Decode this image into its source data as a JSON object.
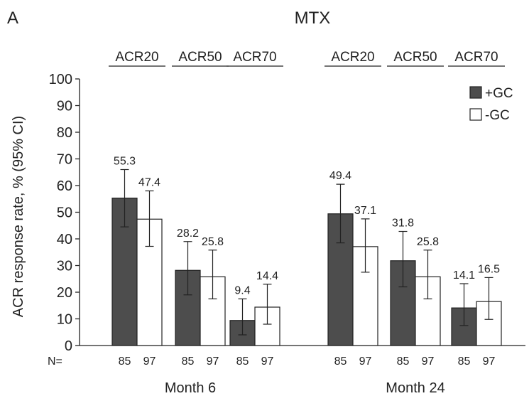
{
  "panel_letter": "A",
  "chart_data": {
    "type": "bar",
    "title": "MTX",
    "xlabel": "",
    "ylabel": "ACR response rate, % (95% CI)",
    "ylim": [
      0,
      100
    ],
    "yticks": [
      0,
      10,
      20,
      30,
      40,
      50,
      60,
      70,
      80,
      90,
      100
    ],
    "grid": false,
    "legend_position": "top-right",
    "n_prefix": "N=",
    "periods": [
      "Month 6",
      "Month 24"
    ],
    "categories": [
      "ACR20",
      "ACR50",
      "ACR70",
      "ACR20",
      "ACR50",
      "ACR70"
    ],
    "category_period": [
      0,
      0,
      0,
      1,
      1,
      1
    ],
    "series": [
      {
        "name": "+GC",
        "color": "#4d4d4d",
        "values": [
          55.3,
          28.2,
          9.4,
          49.4,
          31.8,
          14.1
        ],
        "ci_low": [
          44.5,
          19.0,
          4.0,
          38.5,
          22.0,
          7.5
        ],
        "ci_high": [
          66.0,
          39.0,
          17.5,
          60.5,
          42.8,
          23.2
        ],
        "n": [
          "85",
          "85",
          "85",
          "85",
          "85",
          "85"
        ]
      },
      {
        "name": "-GC",
        "color": "#ffffff",
        "values": [
          47.4,
          25.8,
          14.4,
          37.1,
          25.8,
          16.5
        ],
        "ci_low": [
          37.2,
          17.5,
          8.0,
          27.5,
          17.5,
          9.8
        ],
        "ci_high": [
          58.0,
          35.8,
          23.0,
          47.5,
          35.8,
          25.5
        ],
        "n": [
          "97",
          "97",
          "97",
          "97",
          "97",
          "97"
        ]
      }
    ]
  }
}
